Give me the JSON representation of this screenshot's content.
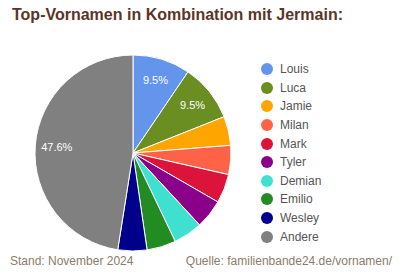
{
  "chart_data": {
    "type": "pie",
    "title": "Top-Vornamen in Kombination mit Jermain:",
    "annotations": [
      "Stand: November 2024",
      "Quelle: familienbande24.de/vornamen/"
    ],
    "categories": [
      "Louis",
      "Luca",
      "Jamie",
      "Milan",
      "Mark",
      "Tyler",
      "Demian",
      "Emilio",
      "Wesley",
      "Andere"
    ],
    "values": [
      9.5,
      9.5,
      4.8,
      4.8,
      4.8,
      4.8,
      4.8,
      4.8,
      4.8,
      47.6
    ],
    "value_labels": [
      "9.5%",
      "9.5%",
      null,
      null,
      null,
      null,
      null,
      null,
      null,
      "47.6%"
    ],
    "data_labels": true,
    "colors": [
      "#6495ed",
      "#6b8e23",
      "#ffa500",
      "#ff6347",
      "#dc143c",
      "#8b008b",
      "#40e0d0",
      "#228b22",
      "#00008b",
      "#808080"
    ],
    "legend": "right"
  }
}
